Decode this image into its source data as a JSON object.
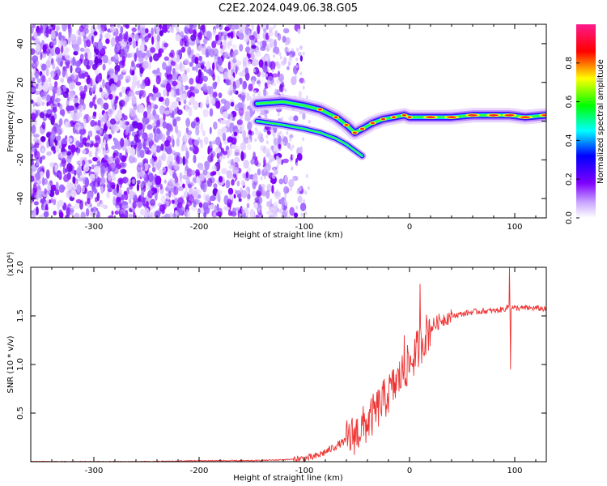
{
  "title": "C2E2.2024.049.06.38.G05",
  "chart_data": [
    {
      "type": "heatmap",
      "xlabel": "Height of straight line (km)",
      "ylabel": "Frequency (Hz)",
      "xlim": [
        -360,
        130
      ],
      "ylim": [
        -50,
        50
      ],
      "xticks": [
        -300,
        -200,
        -100,
        0,
        100
      ],
      "xtick_labels": [
        "-300",
        "-200",
        "-100",
        "0",
        "100"
      ],
      "yticks": [
        -40,
        -20,
        0,
        20,
        40
      ],
      "ytick_labels": [
        "-40",
        "-20",
        "0",
        "20",
        "40"
      ],
      "colorbar": {
        "label": "Normalized spectral amplitude",
        "range": [
          0.0,
          1.0
        ],
        "ticks": [
          0.0,
          0.2,
          0.4,
          0.6,
          0.8
        ],
        "tick_labels": [
          "0.0",
          "0.2",
          "0.4",
          "0.6",
          "0.8"
        ],
        "colormap": [
          "#ffffff",
          "#7f00ff",
          "#0000ff",
          "#00ffff",
          "#00ff00",
          "#ffff00",
          "#ff0000",
          "#ff0080"
        ]
      },
      "signal_ridge": {
        "height_km": [
          -145,
          -120,
          -100,
          -85,
          -70,
          -60,
          -52,
          -45,
          -35,
          -25,
          -15,
          -5,
          0,
          20,
          40,
          60,
          80,
          95,
          110,
          130
        ],
        "frequency_hz": [
          9,
          10,
          8,
          6,
          2,
          -2,
          -6,
          -4,
          -1,
          1,
          2,
          3,
          2,
          2,
          2,
          3,
          3,
          3,
          2,
          3
        ]
      },
      "secondary_ridge": {
        "height_km": [
          -145,
          -120,
          -100,
          -85,
          -70,
          -60,
          -55,
          -50,
          -45
        ],
        "frequency_hz": [
          0,
          -2,
          -4,
          -6,
          -9,
          -12,
          -14,
          -16,
          -18
        ]
      },
      "grid": false
    },
    {
      "type": "line",
      "xlabel": "Height of straight line (km)",
      "ylabel": "SNR (10 * v/v)",
      "y_multiplier": "(x10⁴)",
      "xlim": [
        -360,
        130
      ],
      "ylim": [
        0,
        2.0
      ],
      "xticks": [
        -300,
        -200,
        -100,
        0,
        100
      ],
      "xtick_labels": [
        "-300",
        "-200",
        "-100",
        "0",
        "100"
      ],
      "yticks": [
        0.5,
        1.0,
        1.5,
        2.0
      ],
      "ytick_labels": [
        "0.5",
        "1.0",
        "1.5",
        "2.0"
      ],
      "color": "#ee3333",
      "series": [
        {
          "x": [
            -360,
            -300,
            -250,
            -200,
            -150,
            -120,
            -100,
            -90,
            -80,
            -70,
            -60,
            -50,
            -40,
            -30,
            -20,
            -10,
            -5,
            0,
            5,
            10,
            15,
            20,
            30,
            40,
            50,
            60,
            70,
            80,
            90,
            95,
            100,
            110,
            120,
            130
          ],
          "y": [
            0.0,
            0.0,
            0.0,
            0.01,
            0.01,
            0.02,
            0.03,
            0.05,
            0.1,
            0.16,
            0.22,
            0.3,
            0.4,
            0.55,
            0.7,
            0.85,
            0.95,
            1.0,
            1.1,
            1.2,
            1.3,
            1.38,
            1.46,
            1.5,
            1.52,
            1.54,
            1.55,
            1.55,
            1.57,
            1.6,
            1.58,
            1.58,
            1.58,
            1.57
          ]
        }
      ],
      "spikes": [
        {
          "x": -5,
          "y": 1.3
        },
        {
          "x": 10,
          "y": 1.83
        },
        {
          "x": 95,
          "y": 2.0
        },
        {
          "x": 96,
          "y": 0.95
        }
      ],
      "grid": false
    }
  ]
}
